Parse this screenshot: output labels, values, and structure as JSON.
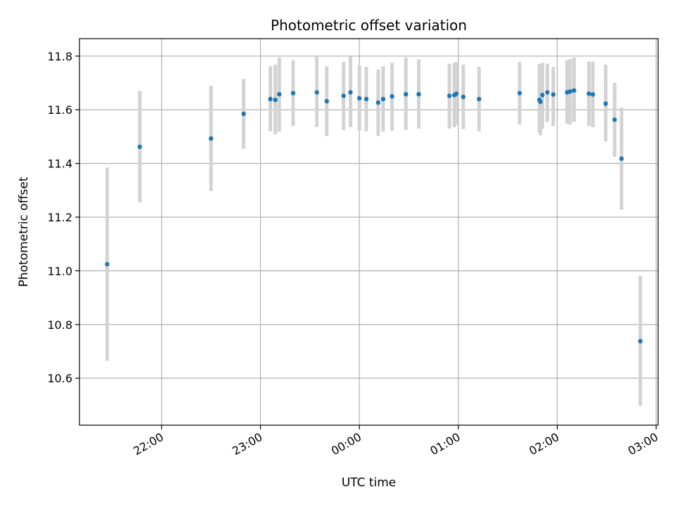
{
  "chart_data": {
    "type": "scatter",
    "title": "Photometric offset variation",
    "xlabel": "UTC time",
    "ylabel": "Photometric offset",
    "x_unit": "hours since midnight UTC",
    "xlim": [
      -2.83,
      3.02
    ],
    "ylim": [
      10.425,
      11.865
    ],
    "x_ticks": [
      {
        "value": -2,
        "label": "22:00"
      },
      {
        "value": -1,
        "label": "23:00"
      },
      {
        "value": 0,
        "label": "00:00"
      },
      {
        "value": 1,
        "label": "01:00"
      },
      {
        "value": 2,
        "label": "02:00"
      },
      {
        "value": 3,
        "label": "03:00"
      }
    ],
    "y_ticks": [
      {
        "value": 10.6,
        "label": "10.6"
      },
      {
        "value": 10.8,
        "label": "10.8"
      },
      {
        "value": 11.0,
        "label": "11.0"
      },
      {
        "value": 11.2,
        "label": "11.2"
      },
      {
        "value": 11.4,
        "label": "11.4"
      },
      {
        "value": 11.6,
        "label": "11.6"
      },
      {
        "value": 11.8,
        "label": "11.8"
      }
    ],
    "grid": true,
    "point_color": "#1f77b4",
    "errorbar_color": "#d3d3d3",
    "points": [
      {
        "x": -2.55,
        "y": 11.025,
        "lo": 10.665,
        "hi": 11.385
      },
      {
        "x": -2.22,
        "y": 11.462,
        "lo": 11.255,
        "hi": 11.67
      },
      {
        "x": -1.5,
        "y": 11.493,
        "lo": 11.297,
        "hi": 11.69
      },
      {
        "x": -1.17,
        "y": 11.585,
        "lo": 11.455,
        "hi": 11.715
      },
      {
        "x": -0.9,
        "y": 11.64,
        "lo": 11.52,
        "hi": 11.762
      },
      {
        "x": -0.85,
        "y": 11.637,
        "lo": 11.508,
        "hi": 11.768
      },
      {
        "x": -0.81,
        "y": 11.658,
        "lo": 11.518,
        "hi": 11.795
      },
      {
        "x": -0.67,
        "y": 11.662,
        "lo": 11.54,
        "hi": 11.785
      },
      {
        "x": -0.43,
        "y": 11.665,
        "lo": 11.535,
        "hi": 11.798
      },
      {
        "x": -0.33,
        "y": 11.632,
        "lo": 11.502,
        "hi": 11.762
      },
      {
        "x": -0.16,
        "y": 11.652,
        "lo": 11.525,
        "hi": 11.778
      },
      {
        "x": -0.09,
        "y": 11.665,
        "lo": 11.535,
        "hi": 11.798
      },
      {
        "x": 0.0,
        "y": 11.643,
        "lo": 11.522,
        "hi": 11.765
      },
      {
        "x": 0.07,
        "y": 11.64,
        "lo": 11.52,
        "hi": 11.76
      },
      {
        "x": 0.19,
        "y": 11.627,
        "lo": 11.502,
        "hi": 11.75
      },
      {
        "x": 0.24,
        "y": 11.64,
        "lo": 11.518,
        "hi": 11.762
      },
      {
        "x": 0.33,
        "y": 11.65,
        "lo": 11.522,
        "hi": 11.775
      },
      {
        "x": 0.47,
        "y": 11.658,
        "lo": 11.525,
        "hi": 11.795
      },
      {
        "x": 0.6,
        "y": 11.658,
        "lo": 11.53,
        "hi": 11.788
      },
      {
        "x": 0.91,
        "y": 11.652,
        "lo": 11.53,
        "hi": 11.772
      },
      {
        "x": 0.96,
        "y": 11.655,
        "lo": 11.535,
        "hi": 11.775
      },
      {
        "x": 0.98,
        "y": 11.66,
        "lo": 11.545,
        "hi": 11.778
      },
      {
        "x": 1.05,
        "y": 11.648,
        "lo": 11.528,
        "hi": 11.768
      },
      {
        "x": 1.21,
        "y": 11.64,
        "lo": 11.52,
        "hi": 11.76
      },
      {
        "x": 1.62,
        "y": 11.662,
        "lo": 11.545,
        "hi": 11.778
      },
      {
        "x": 1.82,
        "y": 11.637,
        "lo": 11.515,
        "hi": 11.77
      },
      {
        "x": 1.83,
        "y": 11.63,
        "lo": 11.505,
        "hi": 11.765
      },
      {
        "x": 1.85,
        "y": 11.655,
        "lo": 11.53,
        "hi": 11.775
      },
      {
        "x": 1.9,
        "y": 11.665,
        "lo": 11.555,
        "hi": 11.772
      },
      {
        "x": 1.96,
        "y": 11.657,
        "lo": 11.54,
        "hi": 11.76
      },
      {
        "x": 2.1,
        "y": 11.665,
        "lo": 11.548,
        "hi": 11.785
      },
      {
        "x": 2.13,
        "y": 11.668,
        "lo": 11.545,
        "hi": 11.79
      },
      {
        "x": 2.17,
        "y": 11.672,
        "lo": 11.555,
        "hi": 11.795
      },
      {
        "x": 2.32,
        "y": 11.66,
        "lo": 11.54,
        "hi": 11.78
      },
      {
        "x": 2.36,
        "y": 11.657,
        "lo": 11.535,
        "hi": 11.78
      },
      {
        "x": 2.49,
        "y": 11.623,
        "lo": 11.482,
        "hi": 11.768
      },
      {
        "x": 2.58,
        "y": 11.563,
        "lo": 11.425,
        "hi": 11.7
      },
      {
        "x": 2.65,
        "y": 11.418,
        "lo": 11.228,
        "hi": 11.608
      },
      {
        "x": 2.84,
        "y": 10.738,
        "lo": 10.497,
        "hi": 10.982
      }
    ]
  }
}
